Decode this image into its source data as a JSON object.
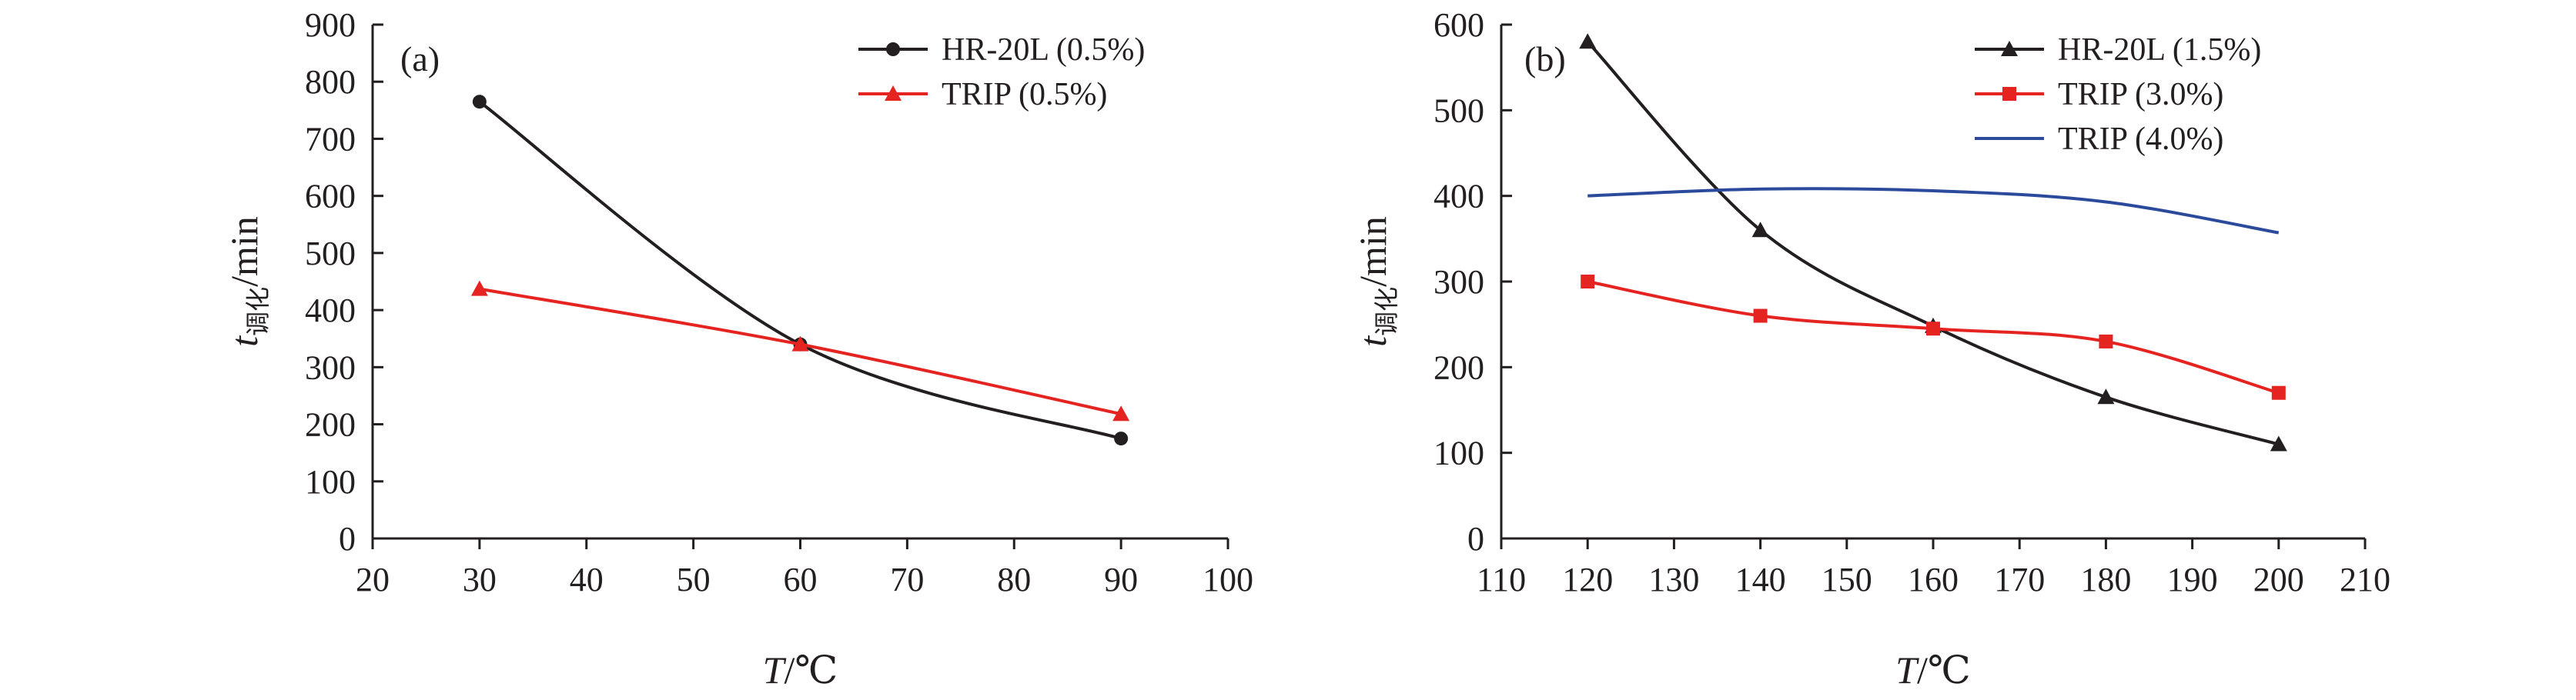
{
  "chart_data": [
    {
      "type": "line",
      "panel_tag": "(a)",
      "x": [
        30,
        60,
        90
      ],
      "xlim": [
        20,
        100
      ],
      "xticks": [
        "20",
        "30",
        "40",
        "50",
        "60",
        "70",
        "80",
        "90",
        "100"
      ],
      "ylim": [
        0,
        900
      ],
      "yticks": [
        "0",
        "100",
        "200",
        "300",
        "400",
        "500",
        "600",
        "700",
        "800",
        "900"
      ],
      "xlabel": {
        "var": "T",
        "unit": "/℃"
      },
      "ylabel": {
        "var": "t",
        "sub": "调化",
        "unit": "/min"
      },
      "series": [
        {
          "name": "HR-20L (0.5%)",
          "marker": "circle",
          "color": "#231f20",
          "values": [
            765,
            340,
            175
          ]
        },
        {
          "name": "TRIP (0.5%)",
          "marker": "triangle",
          "color": "#e52421",
          "values": [
            437,
            340,
            218
          ]
        }
      ],
      "legend": "top-right",
      "grid": false
    },
    {
      "type": "line",
      "panel_tag": "(b)",
      "x": [
        120,
        140,
        160,
        180,
        200
      ],
      "xlim": [
        110,
        210
      ],
      "xticks": [
        "110",
        "120",
        "130",
        "140",
        "150",
        "160",
        "170",
        "180",
        "190",
        "200",
        "210"
      ],
      "ylim": [
        0,
        600
      ],
      "yticks": [
        "0",
        "100",
        "200",
        "300",
        "400",
        "500",
        "600"
      ],
      "xlabel": {
        "var": "T",
        "unit": "/℃"
      },
      "ylabel": {
        "var": "t",
        "sub": "调化",
        "unit": "/min"
      },
      "series": [
        {
          "name": "HR-20L (1.5%)",
          "marker": "triangle",
          "color": "#231f20",
          "values": [
            580,
            360,
            248,
            165,
            110
          ]
        },
        {
          "name": "TRIP (3.0%)",
          "marker": "square",
          "color": "#e52421",
          "values": [
            300,
            260,
            245,
            230,
            170
          ]
        },
        {
          "name": "TRIP (4.0%)",
          "marker": "none",
          "color": "#2b4a9c",
          "x": [
            120,
            140,
            160,
            180,
            200
          ],
          "values": [
            400,
            408,
            406,
            393,
            357
          ]
        }
      ],
      "legend": "top-right",
      "grid": false
    }
  ]
}
